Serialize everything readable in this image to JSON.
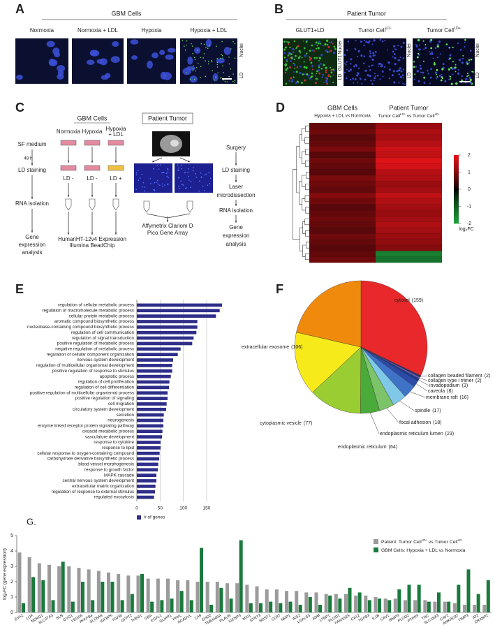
{
  "labels": {
    "a": "A",
    "b": "B",
    "c": "C",
    "d": "D",
    "e": "E",
    "f": "F",
    "g": "G."
  },
  "panel_a": {
    "title": "GBM Cells",
    "columns": [
      "Normoxia",
      "Normoxia + LDL",
      "Hypoxia",
      "Hypoxia + LDL"
    ],
    "channels": [
      "Nuclei",
      "LD"
    ]
  },
  "panel_b": {
    "title": "Patient Tumor",
    "columns": [
      "GLUT1+LD",
      "Tumor CellLD-",
      "Tumor CellLD+"
    ],
    "channels_merge": [
      "LD",
      "GLUT1",
      "Nuclei"
    ],
    "channels": [
      "Nuclei",
      "LD"
    ]
  },
  "panel_c": {
    "gbm_title": "GBM Cells",
    "tumor_title": "Patient Tumor",
    "time": "48 h",
    "left_steps": [
      [
        "SF medium"
      ],
      [
        "LD staining"
      ],
      [
        "RNA isolation"
      ],
      [
        "Gene",
        "expression",
        "analysis"
      ]
    ],
    "conditions": [
      [
        "Normoxia"
      ],
      [
        "Hypoxia"
      ],
      [
        "Hypoxia",
        "+ LDL"
      ]
    ],
    "ld_states": [
      "LD -",
      "LD -",
      "LD +"
    ],
    "gbm_platform": [
      "HumanHT-12v4 Expression",
      "Illumina BeadChip"
    ],
    "tumor_platform": [
      "Affymetrix Clariom D",
      "Pico Gene Array"
    ],
    "right_steps": [
      [
        "Surgery"
      ],
      [
        "LD staining"
      ],
      [
        "Laser",
        "microdissection"
      ],
      [
        "RNA isolation"
      ],
      [
        "Gene",
        "expression",
        "analysis"
      ]
    ]
  },
  "chart_data": [
    {
      "type": "heatmap",
      "columns": [
        {
          "title": "GBM Cells",
          "subtitle": "Hypoxia + LDL vs Normoxia"
        },
        {
          "title": "Patient Tumor",
          "subtitle": "Tumor CellLD+ vs Tumor CellLD-"
        }
      ],
      "series": [
        {
          "values": [
            0.7,
            0.8,
            0.6,
            0.7,
            0.9,
            0.6,
            0.8,
            0.7,
            0.6,
            0.9,
            0.8,
            0.7,
            1.0,
            0.8,
            0.6,
            0.7,
            0.8,
            0.7,
            0.6,
            0.8,
            0.7,
            0.6,
            0.7,
            0.8
          ]
        },
        {
          "values": [
            1.2,
            1.4,
            1.3,
            1.5,
            1.7,
            1.6,
            1.9,
            1.8,
            1.5,
            1.4,
            1.2,
            1.3,
            1.6,
            1.4,
            1.3,
            1.2,
            1.3,
            1.4,
            1.3,
            1.2,
            1.1,
            1.0,
            -1.5,
            -1.3
          ]
        }
      ],
      "zlim": [
        -2,
        2
      ],
      "zticks": [
        2,
        1,
        0,
        -1,
        -2
      ],
      "colorbar_label": "log₂FC"
    },
    {
      "type": "bar",
      "orientation": "horizontal",
      "categories": [
        "regulation of cellular metabolic process",
        "regulation of macromolecule metabolic process",
        "cellular protein metabolic process",
        "aromatic compound biosynthetic process",
        "nucleobase-containing compound biosynthetic process",
        "regulation of cell communication",
        "regulation of signal transduction",
        "positive regulation of metabolic process",
        "negative regulation of metabolic process",
        "regulation of cellular component organization",
        "nervous system development",
        "regulation of multicellular organismal development",
        "positive regulation of response to stimulus",
        "apoptotic process",
        "regulation of cell proliferation",
        "regulation of cell differentiation",
        "positive regulation of multicellular organismal process",
        "positive regulation of signaling",
        "cell migration",
        "circulatory system development",
        "secretion",
        "neurogenesis",
        "enzyme linked receptor protein signaling pathway",
        "oxoacid metabolic process",
        "vasculature development",
        "response to cytokine",
        "response to lipid",
        "cellular response to oxygen-containing compound",
        "carbohydrate derivative biosynthetic process",
        "blood vessel morphogenesis",
        "response to growth factor",
        "MAPK cascade",
        "central nervous system development",
        "extracellular matrix organization",
        "regulation of response to external stimulus",
        "regulated exocytosis"
      ],
      "series": [
        {
          "name": "# of genes",
          "color": "#2e2e8a",
          "values": [
            183,
            178,
            170,
            130,
            130,
            128,
            122,
            119,
            94,
            88,
            78,
            76,
            76,
            73,
            70,
            69,
            66,
            66,
            64,
            63,
            58,
            57,
            57,
            55,
            54,
            51,
            51,
            49,
            48,
            46,
            45,
            42,
            42,
            40,
            39,
            37
          ]
        }
      ],
      "xlim": [
        0,
        190
      ],
      "xticks": [
        0,
        50,
        100,
        150
      ],
      "grid": true
    },
    {
      "type": "pie",
      "categories": [
        "cytosol",
        "collagen beaded filament",
        "collagen type I trimer",
        "invadopodium",
        "caveola",
        "membrane raft",
        "spindle",
        "focal adhesion",
        "endoplasmic reticulum lumen",
        "endoplasmic reticulum",
        "cytoplasmic vesicle",
        "extracellular exosome"
      ],
      "values": [
        159,
        2,
        2,
        3,
        8,
        16,
        17,
        18,
        23,
        64,
        77,
        106
      ],
      "value_labels": [
        "(159)",
        "(2)",
        "(2)",
        "(3)",
        "(8)",
        "(16)",
        "(17)",
        "(18)",
        "(23)",
        "(64)",
        "(77)",
        "(106)"
      ],
      "colors": [
        "#e8282a",
        "#2a2f7a",
        "#6b63b5",
        "#1f3a93",
        "#2c4aa8",
        "#3f73c8",
        "#80c8e8",
        "#7cc36a",
        "#4bab3a",
        "#9acd32",
        "#f7ea1a",
        "#f08a0c"
      ]
    },
    {
      "type": "bar",
      "orientation": "vertical",
      "ylabel": "log₂FC (gene expression)",
      "categories": [
        "EYA1",
        "LOX",
        "NDRG1",
        "SLC27A3",
        "SLN",
        "GYG1",
        "VEGFA",
        "PFKFB4",
        "SLC6A8",
        "IGFBP5",
        "TGFBI",
        "GFPT2",
        "THBS1",
        "GBA",
        "EGFL1",
        "GLIPR1",
        "PFKL",
        "ACADVL",
        "CA9",
        "EHD2",
        "TMEM45A",
        "PLAUR",
        "IGFBP3",
        "MXI1",
        "STRT3",
        "NDST1",
        "CD47",
        "NRP1",
        "IRS2",
        "LGALS3",
        "ADM",
        "LTBP1",
        "PLOD1",
        "FAM162A",
        "CA12",
        "TGFB3",
        "IL1B",
        "CAV1",
        "BNIP3",
        "PLOD2",
        "PTPRF",
        "TNC",
        "SLC16A3",
        "CAV2",
        "ANKRD37",
        "TIMP3",
        "ID2",
        "CRABP2"
      ],
      "series": [
        {
          "name": "Patient: Tumor CellLD+ vs Tumor CellLD-",
          "color": "#9b9b9b",
          "values": [
            3.9,
            3.6,
            3.2,
            3.1,
            3.0,
            3.0,
            2.9,
            2.8,
            2.7,
            2.6,
            2.5,
            2.4,
            2.4,
            2.2,
            2.2,
            2.2,
            2.1,
            2.1,
            2.0,
            2.0,
            2.0,
            1.9,
            1.9,
            1.8,
            1.7,
            1.5,
            1.5,
            1.4,
            1.4,
            1.3,
            1.3,
            1.2,
            1.2,
            1.2,
            1.1,
            1.1,
            1.0,
            0.9,
            0.9,
            0.8,
            0.8,
            0.8,
            0.7,
            0.7,
            0.6,
            0.5,
            0.5,
            0.5
          ]
        },
        {
          "name": "GBM Cells: Hypoxia + LDL vs Normoxia",
          "color": "#1a7a3c",
          "values": [
            0.6,
            2.3,
            2.1,
            0.8,
            3.3,
            0.7,
            2.0,
            0.8,
            2.0,
            2.0,
            0.8,
            1.2,
            2.5,
            0.7,
            0.8,
            0.9,
            1.4,
            0.8,
            4.2,
            0.5,
            1.6,
            0.9,
            4.7,
            0.6,
            0.6,
            0.7,
            0.6,
            0.7,
            0.5,
            1.0,
            0.5,
            1.1,
            0.9,
            1.6,
            1.3,
            0.8,
            0.9,
            0.8,
            1.5,
            1.8,
            1.8,
            0.7,
            1.3,
            0.7,
            1.8,
            2.8,
            1.2,
            2.1
          ]
        }
      ],
      "ylim": [
        0,
        5
      ],
      "yticks": [
        0,
        1,
        2,
        3,
        4,
        5
      ],
      "legend": "top-right"
    }
  ]
}
